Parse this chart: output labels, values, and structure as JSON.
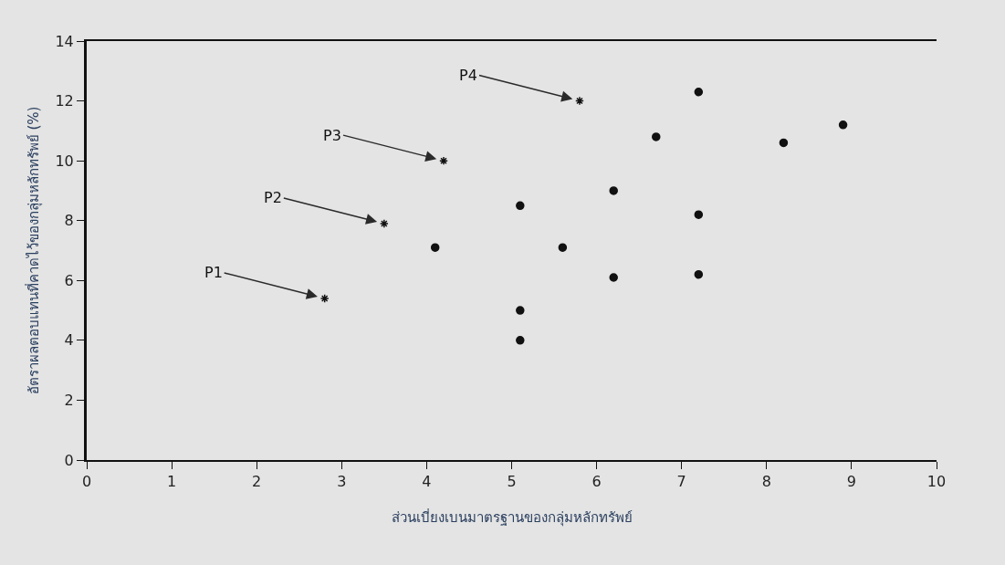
{
  "chart_data": {
    "type": "scatter",
    "xlabel": "ส่วนเบี่ยงเบนมาตรฐานของกลุ่มหลักทรัพย์",
    "ylabel": "อัตราผลตอบแทนที่คาดไว้ของกลุ่มหลักทรัพย์ (%)",
    "xlim": [
      0,
      10
    ],
    "xticks": [
      0,
      1,
      2,
      3,
      4,
      5,
      6,
      7,
      8,
      9,
      10
    ],
    "ylim": [
      0,
      14
    ],
    "yticks": [
      0,
      2,
      4,
      6,
      8,
      10,
      12,
      14
    ],
    "series": [
      {
        "color": "#111111",
        "marker": "circle",
        "x": [
          4.1,
          5.1,
          5.1,
          5.1,
          5.6,
          6.2,
          6.2,
          6.7,
          7.2,
          7.2,
          7.2,
          8.2,
          8.9
        ],
        "values": [
          7.1,
          8.5,
          5.0,
          4.0,
          7.1,
          9.0,
          6.1,
          10.8,
          12.3,
          8.2,
          6.2,
          10.6,
          11.2
        ]
      },
      {
        "color": "#111111",
        "marker": "cross",
        "x": [
          2.8,
          3.5,
          4.2,
          5.8
        ],
        "values": [
          5.4,
          7.9,
          10.0,
          12.0
        ]
      }
    ],
    "annotations": [
      {
        "text": "P1",
        "x": 2.8,
        "y": 5.4
      },
      {
        "text": "P2",
        "x": 3.5,
        "y": 7.9
      },
      {
        "text": "P3",
        "x": 4.2,
        "y": 10.0
      },
      {
        "text": "P4",
        "x": 5.8,
        "y": 12.0
      }
    ]
  }
}
